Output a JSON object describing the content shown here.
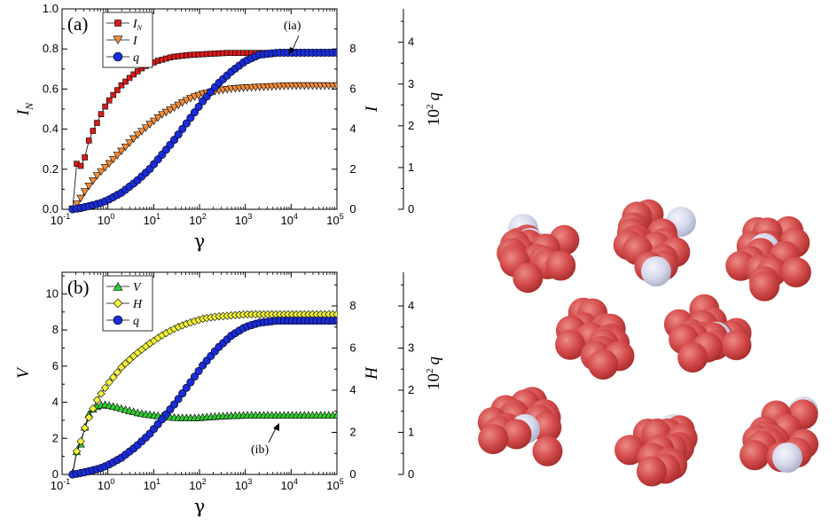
{
  "colors": {
    "IN": "#d81b1b",
    "I": "#f08c3a",
    "q": "#1a2cd6",
    "V": "#33cc33",
    "H": "#f2f23a",
    "cluster_red": "#d24a4a",
    "cluster_white": "#d6d8ec"
  },
  "chart_data": [
    {
      "type": "line",
      "panel_label": "(a)",
      "annotation": "(ia)",
      "annotation_italic_part": "i",
      "xlabel": "γ",
      "x_scale": "log",
      "xlim": [
        0.1,
        100000
      ],
      "x_ticks": [
        "10",
        "10",
        "10",
        "10",
        "10",
        "10",
        "10"
      ],
      "x_tick_exponents": [
        "-1",
        "0",
        "1",
        "2",
        "3",
        "4",
        "5"
      ],
      "left_axis": {
        "label": "I",
        "label_subscript": "N",
        "ylim": [
          0,
          1.0
        ],
        "ticks": [
          "0.0",
          "0.2",
          "0.4",
          "0.6",
          "0.8",
          "1.0"
        ]
      },
      "right_axis_1": {
        "label": "I",
        "ylim": [
          0,
          10
        ],
        "ticks": [
          "0",
          "2",
          "4",
          "6",
          "8"
        ]
      },
      "right_axis_2": {
        "label": "10",
        "label_superscript": "2",
        "label_var": "q",
        "ylim": [
          0,
          4.8
        ],
        "ticks": [
          "0",
          "1",
          "2",
          "3",
          "4"
        ]
      },
      "legend": [
        {
          "name": "I",
          "subscript": "N",
          "marker": "square",
          "color": "#d81b1b"
        },
        {
          "name": "I",
          "subscript": "",
          "marker": "triangle-down",
          "color": "#f08c3a"
        },
        {
          "name": "q",
          "subscript": "",
          "marker": "circle",
          "color": "#1a2cd6"
        }
      ],
      "series": [
        {
          "name": "IN",
          "axis": "left",
          "marker": "square",
          "color": "#d81b1b",
          "x": [
            0.17,
            0.2,
            0.23,
            0.27,
            0.32,
            0.4,
            0.55,
            0.8,
            1.2,
            2,
            3.5,
            6,
            12,
            25,
            60,
            150,
            400,
            1000,
            3000,
            10000,
            30000,
            100000
          ],
          "y": [
            0.0,
            0.26,
            0.15,
            0.25,
            0.26,
            0.36,
            0.42,
            0.5,
            0.56,
            0.62,
            0.67,
            0.71,
            0.74,
            0.76,
            0.77,
            0.775,
            0.78,
            0.78,
            0.78,
            0.78,
            0.78,
            0.78
          ]
        },
        {
          "name": "I",
          "axis": "right1",
          "marker": "triangle-down",
          "color": "#f08c3a",
          "x": [
            0.17,
            0.2,
            0.25,
            0.3,
            0.4,
            0.6,
            1,
            2,
            4,
            8,
            15,
            30,
            60,
            120,
            250,
            500,
            1000,
            3000,
            10000,
            30000,
            100000
          ],
          "y": [
            0.0,
            0.2,
            0.5,
            0.8,
            1.2,
            1.7,
            2.2,
            2.9,
            3.6,
            4.2,
            4.7,
            5.1,
            5.5,
            5.75,
            5.9,
            6.0,
            6.05,
            6.1,
            6.15,
            6.15,
            6.15
          ]
        },
        {
          "name": "q",
          "axis": "right2",
          "marker": "circle",
          "color": "#1a2cd6",
          "x": [
            0.17,
            0.25,
            0.4,
            0.7,
            1,
            2,
            4,
            8,
            15,
            30,
            60,
            120,
            250,
            500,
            1000,
            2000,
            5000,
            10000,
            30000,
            100000
          ],
          "y": [
            0.0,
            0.03,
            0.08,
            0.15,
            0.22,
            0.4,
            0.65,
            0.95,
            1.3,
            1.7,
            2.15,
            2.6,
            3.0,
            3.3,
            3.55,
            3.7,
            3.75,
            3.75,
            3.75,
            3.75
          ]
        }
      ]
    },
    {
      "type": "line",
      "panel_label": "(b)",
      "annotation": "(ib)",
      "annotation_italic_part": "i",
      "xlabel": "γ",
      "x_scale": "log",
      "xlim": [
        0.1,
        100000
      ],
      "x_ticks": [
        "10",
        "10",
        "10",
        "10",
        "10",
        "10",
        "10"
      ],
      "x_tick_exponents": [
        "-1",
        "0",
        "1",
        "2",
        "3",
        "4",
        "5"
      ],
      "left_axis": {
        "label": "V",
        "ylim": [
          0,
          11.2
        ],
        "ticks": [
          "0",
          "2",
          "4",
          "6",
          "8",
          "10"
        ]
      },
      "right_axis_1": {
        "label": "H",
        "ylim": [
          0,
          9.6
        ],
        "ticks": [
          "0",
          "2",
          "4",
          "6",
          "8"
        ]
      },
      "right_axis_2": {
        "label": "10",
        "label_superscript": "2",
        "label_var": "q",
        "ylim": [
          0,
          4.8
        ],
        "ticks": [
          "0",
          "1",
          "2",
          "3",
          "4"
        ]
      },
      "legend": [
        {
          "name": "V",
          "marker": "triangle-up",
          "color": "#33cc33"
        },
        {
          "name": "H",
          "marker": "diamond",
          "color": "#f2f23a"
        },
        {
          "name": "q",
          "marker": "circle",
          "color": "#1a2cd6"
        }
      ],
      "series": [
        {
          "name": "V",
          "axis": "left",
          "marker": "triangle-up",
          "color": "#33cc33",
          "x": [
            0.17,
            0.2,
            0.25,
            0.3,
            0.35,
            0.45,
            0.6,
            0.8,
            1,
            1.5,
            2.5,
            5,
            10,
            20,
            40,
            80,
            150,
            300,
            1000,
            3000,
            10000,
            30000,
            100000
          ],
          "y": [
            0.1,
            1.2,
            1.6,
            2.4,
            3.2,
            3.6,
            3.8,
            3.9,
            3.85,
            3.75,
            3.6,
            3.4,
            3.3,
            3.2,
            3.15,
            3.15,
            3.2,
            3.25,
            3.3,
            3.3,
            3.3,
            3.3,
            3.3
          ]
        },
        {
          "name": "H",
          "axis": "right1",
          "marker": "diamond",
          "color": "#f2f23a",
          "x": [
            0.17,
            0.2,
            0.25,
            0.3,
            0.4,
            0.6,
            1,
            2,
            4,
            8,
            15,
            30,
            60,
            120,
            250,
            500,
            1000,
            3000,
            10000,
            30000,
            100000
          ],
          "y": [
            0.0,
            1.0,
            1.5,
            2.1,
            2.8,
            3.6,
            4.3,
            5.1,
            5.7,
            6.2,
            6.6,
            6.95,
            7.2,
            7.4,
            7.5,
            7.55,
            7.6,
            7.6,
            7.6,
            7.6,
            7.6
          ]
        },
        {
          "name": "q",
          "axis": "right2",
          "marker": "circle",
          "color": "#1a2cd6",
          "x": [
            0.17,
            0.25,
            0.4,
            0.7,
            1,
            2,
            4,
            8,
            15,
            30,
            60,
            120,
            250,
            500,
            1000,
            2000,
            5000,
            10000,
            30000,
            100000
          ],
          "y": [
            0.0,
            0.03,
            0.08,
            0.15,
            0.22,
            0.4,
            0.65,
            0.95,
            1.3,
            1.7,
            2.15,
            2.6,
            3.0,
            3.3,
            3.5,
            3.6,
            3.65,
            3.65,
            3.65,
            3.65
          ]
        }
      ]
    }
  ]
}
